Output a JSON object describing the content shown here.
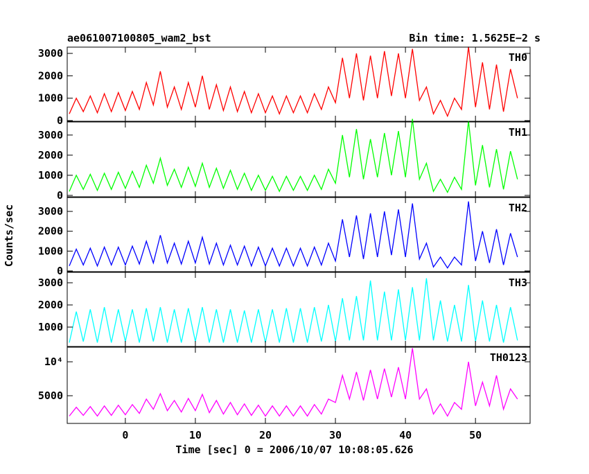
{
  "chart_data": [
    {
      "type": "line",
      "title": "ae061007100805_wam2_bst",
      "subtitle": "Bin time: 1.5625E−2 s",
      "panel_label": "TH0",
      "color": "#ff0000",
      "xlim": [
        -8.3,
        57.8
      ],
      "xticks": [
        0,
        10,
        20,
        30,
        40,
        50
      ],
      "ylim": [
        -30,
        3280
      ],
      "yticks": [
        0,
        1000,
        2000,
        3000
      ],
      "x": [
        -8,
        -7,
        -6,
        -5,
        -4,
        -3,
        -2,
        -1,
        0,
        1,
        2,
        3,
        4,
        5,
        6,
        7,
        8,
        9,
        10,
        11,
        12,
        13,
        14,
        15,
        16,
        17,
        18,
        19,
        20,
        21,
        22,
        23,
        24,
        25,
        26,
        27,
        28,
        29,
        30,
        31,
        32,
        33,
        34,
        35,
        36,
        37,
        38,
        39,
        40,
        41,
        42,
        43,
        44,
        45,
        46,
        47,
        48,
        49,
        50,
        51,
        52,
        53,
        54,
        55,
        56
      ],
      "values": [
        300,
        1000,
        400,
        1100,
        350,
        1200,
        400,
        1250,
        450,
        1300,
        500,
        1700,
        700,
        2200,
        600,
        1500,
        500,
        1700,
        600,
        2000,
        500,
        1600,
        450,
        1500,
        400,
        1300,
        350,
        1200,
        350,
        1100,
        300,
        1100,
        350,
        1100,
        350,
        1200,
        500,
        1500,
        800,
        2800,
        1000,
        3000,
        900,
        2900,
        1000,
        3100,
        1100,
        3000,
        1000,
        3200,
        900,
        1500,
        300,
        900,
        200,
        1000,
        500,
        3300,
        600,
        2600,
        500,
        2500,
        400,
        2300,
        1000
      ]
    },
    {
      "type": "line",
      "panel_label": "TH1",
      "color": "#00ff00",
      "xlim": [
        -8.3,
        57.8
      ],
      "xticks": [
        0,
        10,
        20,
        30,
        40,
        50
      ],
      "ylim": [
        -70,
        3650
      ],
      "yticks": [
        0,
        1000,
        2000,
        3000
      ],
      "x": [
        -8,
        -7,
        -6,
        -5,
        -4,
        -3,
        -2,
        -1,
        0,
        1,
        2,
        3,
        4,
        5,
        6,
        7,
        8,
        9,
        10,
        11,
        12,
        13,
        14,
        15,
        16,
        17,
        18,
        19,
        20,
        21,
        22,
        23,
        24,
        25,
        26,
        27,
        28,
        29,
        30,
        31,
        32,
        33,
        34,
        35,
        36,
        37,
        38,
        39,
        40,
        41,
        42,
        43,
        44,
        45,
        46,
        47,
        48,
        49,
        50,
        51,
        52,
        53,
        54,
        55,
        56
      ],
      "values": [
        200,
        1000,
        300,
        1050,
        250,
        1100,
        300,
        1150,
        350,
        1200,
        400,
        1500,
        600,
        1850,
        500,
        1300,
        400,
        1400,
        450,
        1600,
        400,
        1350,
        350,
        1250,
        300,
        1100,
        250,
        1000,
        250,
        950,
        200,
        950,
        250,
        950,
        250,
        1000,
        300,
        1300,
        600,
        3000,
        900,
        3300,
        800,
        2800,
        900,
        3100,
        1000,
        3200,
        900,
        3800,
        800,
        1600,
        200,
        800,
        150,
        900,
        300,
        3700,
        500,
        2500,
        400,
        2300,
        300,
        2200,
        800
      ]
    },
    {
      "type": "line",
      "panel_label": "TH2",
      "ylabel": "Counts/sec",
      "color": "#0000ff",
      "xlim": [
        -8.3,
        57.8
      ],
      "xticks": [
        0,
        10,
        20,
        30,
        40,
        50
      ],
      "ylim": [
        -35,
        3700
      ],
      "yticks": [
        0,
        1000,
        2000,
        3000
      ],
      "x": [
        -8,
        -7,
        -6,
        -5,
        -4,
        -3,
        -2,
        -1,
        0,
        1,
        2,
        3,
        4,
        5,
        6,
        7,
        8,
        9,
        10,
        11,
        12,
        13,
        14,
        15,
        16,
        17,
        18,
        19,
        20,
        21,
        22,
        23,
        24,
        25,
        26,
        27,
        28,
        29,
        30,
        31,
        32,
        33,
        34,
        35,
        36,
        37,
        38,
        39,
        40,
        41,
        42,
        43,
        44,
        45,
        46,
        47,
        48,
        49,
        50,
        51,
        52,
        53,
        54,
        55,
        56
      ],
      "values": [
        250,
        1100,
        300,
        1150,
        250,
        1200,
        300,
        1200,
        300,
        1250,
        350,
        1500,
        400,
        1800,
        400,
        1400,
        350,
        1500,
        400,
        1700,
        350,
        1400,
        300,
        1300,
        300,
        1250,
        250,
        1200,
        250,
        1150,
        250,
        1150,
        250,
        1150,
        250,
        1200,
        300,
        1400,
        500,
        2600,
        700,
        2800,
        600,
        2900,
        700,
        3000,
        800,
        3100,
        700,
        3400,
        600,
        1400,
        200,
        700,
        150,
        700,
        300,
        3500,
        500,
        2000,
        400,
        2100,
        300,
        1900,
        700
      ]
    },
    {
      "type": "line",
      "panel_label": "TH3",
      "color": "#00ffff",
      "xlim": [
        -8.3,
        57.8
      ],
      "xticks": [
        0,
        10,
        20,
        30,
        40,
        50
      ],
      "ylim": [
        125,
        3470
      ],
      "yticks": [
        1000,
        2000,
        3000
      ],
      "x": [
        -8,
        -7,
        -6,
        -5,
        -4,
        -3,
        -2,
        -1,
        0,
        1,
        2,
        3,
        4,
        5,
        6,
        7,
        8,
        9,
        10,
        11,
        12,
        13,
        14,
        15,
        16,
        17,
        18,
        19,
        20,
        21,
        22,
        23,
        24,
        25,
        26,
        27,
        28,
        29,
        30,
        31,
        32,
        33,
        34,
        35,
        36,
        37,
        38,
        39,
        40,
        41,
        42,
        43,
        44,
        45,
        46,
        47,
        48,
        49,
        50,
        51,
        52,
        53,
        54,
        55,
        56
      ],
      "values": [
        300,
        1700,
        350,
        1800,
        300,
        1900,
        300,
        1800,
        350,
        1800,
        300,
        1850,
        350,
        1900,
        300,
        1800,
        300,
        1850,
        350,
        1900,
        300,
        1800,
        300,
        1800,
        300,
        1750,
        300,
        1800,
        300,
        1800,
        300,
        1850,
        300,
        1850,
        300,
        1900,
        350,
        2000,
        350,
        2300,
        400,
        2400,
        400,
        3100,
        400,
        2600,
        400,
        2700,
        400,
        2800,
        400,
        3200,
        400,
        2200,
        350,
        2000,
        350,
        2900,
        350,
        2200,
        350,
        2000,
        300,
        1900,
        400
      ]
    },
    {
      "type": "line",
      "panel_label": "TH0123",
      "xlabel": "Time [sec] 0 = 2006/10/07 10:08:05.626",
      "color": "#ff00ff",
      "xlim": [
        -8.3,
        57.8
      ],
      "xticks": [
        0,
        10,
        20,
        30,
        40,
        50
      ],
      "ylim": [
        920,
        12150
      ],
      "yticks": [
        5000,
        {
          "value": 10000,
          "label": "10⁴"
        }
      ],
      "x": [
        -8,
        -7,
        -6,
        -5,
        -4,
        -3,
        -2,
        -1,
        0,
        1,
        2,
        3,
        4,
        5,
        6,
        7,
        8,
        9,
        10,
        11,
        12,
        13,
        14,
        15,
        16,
        17,
        18,
        19,
        20,
        21,
        22,
        23,
        24,
        25,
        26,
        27,
        28,
        29,
        30,
        31,
        32,
        33,
        34,
        35,
        36,
        37,
        38,
        39,
        40,
        41,
        42,
        43,
        44,
        45,
        46,
        47,
        48,
        49,
        50,
        51,
        52,
        53,
        54,
        55,
        56
      ],
      "values": [
        2000,
        3300,
        2100,
        3400,
        2000,
        3500,
        2100,
        3600,
        2200,
        3700,
        2400,
        4500,
        3000,
        5300,
        2800,
        4300,
        2600,
        4600,
        2800,
        5200,
        2500,
        4300,
        2300,
        4000,
        2200,
        3800,
        2100,
        3600,
        2000,
        3500,
        2000,
        3500,
        2000,
        3500,
        2000,
        3700,
        2300,
        4500,
        4000,
        8000,
        4500,
        8500,
        4300,
        8800,
        4500,
        9000,
        4800,
        9200,
        4500,
        12000,
        4500,
        6000,
        2300,
        3800,
        2000,
        4000,
        3000,
        10000,
        3500,
        7000,
        3500,
        8000,
        3000,
        6000,
        4500
      ]
    }
  ]
}
